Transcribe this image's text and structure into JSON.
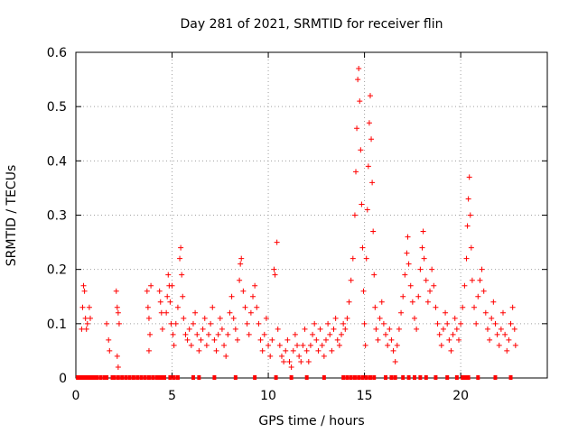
{
  "chart_data": {
    "type": "scatter",
    "title": "Day 281 of 2021, SRMTID for receiver flin",
    "xlabel": "GPS time / hours",
    "ylabel": "SRMTID / TECUs",
    "xlim": [
      0,
      24.5
    ],
    "ylim": [
      0,
      0.6
    ],
    "x_ticks": [
      0,
      5,
      10,
      15,
      20
    ],
    "x_tick_labels": [
      "0",
      "5",
      "10",
      "15",
      "20"
    ],
    "y_ticks": [
      0,
      0.1,
      0.2,
      0.3,
      0.4,
      0.5,
      0.6
    ],
    "y_tick_labels": [
      "0",
      "0.1",
      "0.2",
      "0.3",
      "0.4",
      "0.5",
      "0.6"
    ],
    "grid": true,
    "marker": "+",
    "color": "#ff0000",
    "series": [
      {
        "name": "SRMTID",
        "points": [
          [
            0.3,
            0.09
          ],
          [
            0.35,
            0.13
          ],
          [
            0.4,
            0.17
          ],
          [
            0.45,
            0.16
          ],
          [
            0.5,
            0.11
          ],
          [
            0.55,
            0.09
          ],
          [
            0.6,
            0.1
          ],
          [
            0.7,
            0.13
          ],
          [
            0.75,
            0.11
          ],
          [
            1.6,
            0.1
          ],
          [
            1.7,
            0.07
          ],
          [
            1.75,
            0.05
          ],
          [
            2.1,
            0.16
          ],
          [
            2.15,
            0.13
          ],
          [
            2.2,
            0.12
          ],
          [
            2.25,
            0.1
          ],
          [
            2.15,
            0.04
          ],
          [
            2.2,
            0.02
          ],
          [
            3.7,
            0.16
          ],
          [
            3.75,
            0.13
          ],
          [
            3.8,
            0.11
          ],
          [
            3.85,
            0.08
          ],
          [
            3.8,
            0.05
          ],
          [
            3.9,
            0.17
          ],
          [
            4.35,
            0.16
          ],
          [
            4.4,
            0.14
          ],
          [
            4.45,
            0.12
          ],
          [
            4.5,
            0.09
          ],
          [
            4.7,
            0.12
          ],
          [
            4.75,
            0.15
          ],
          [
            4.8,
            0.19
          ],
          [
            4.85,
            0.17
          ],
          [
            4.9,
            0.14
          ],
          [
            4.95,
            0.1
          ],
          [
            5.0,
            0.17
          ],
          [
            5.05,
            0.08
          ],
          [
            5.1,
            0.06
          ],
          [
            5.2,
            0.1
          ],
          [
            5.3,
            0.13
          ],
          [
            5.4,
            0.22
          ],
          [
            5.45,
            0.24
          ],
          [
            5.5,
            0.19
          ],
          [
            5.55,
            0.15
          ],
          [
            5.6,
            0.11
          ],
          [
            5.7,
            0.08
          ],
          [
            5.8,
            0.07
          ],
          [
            5.9,
            0.09
          ],
          [
            6.0,
            0.06
          ],
          [
            6.1,
            0.1
          ],
          [
            6.2,
            0.12
          ],
          [
            6.3,
            0.08
          ],
          [
            6.4,
            0.05
          ],
          [
            6.5,
            0.07
          ],
          [
            6.6,
            0.09
          ],
          [
            6.7,
            0.11
          ],
          [
            6.8,
            0.06
          ],
          [
            6.9,
            0.08
          ],
          [
            7.0,
            0.1
          ],
          [
            7.1,
            0.13
          ],
          [
            7.2,
            0.07
          ],
          [
            7.3,
            0.05
          ],
          [
            7.4,
            0.08
          ],
          [
            7.5,
            0.11
          ],
          [
            7.6,
            0.09
          ],
          [
            7.7,
            0.06
          ],
          [
            7.8,
            0.04
          ],
          [
            7.9,
            0.08
          ],
          [
            8.0,
            0.12
          ],
          [
            8.1,
            0.15
          ],
          [
            8.2,
            0.11
          ],
          [
            8.3,
            0.09
          ],
          [
            8.4,
            0.07
          ],
          [
            8.5,
            0.18
          ],
          [
            8.55,
            0.21
          ],
          [
            8.6,
            0.22
          ],
          [
            8.7,
            0.16
          ],
          [
            8.8,
            0.13
          ],
          [
            8.9,
            0.1
          ],
          [
            9.0,
            0.08
          ],
          [
            9.1,
            0.12
          ],
          [
            9.2,
            0.15
          ],
          [
            9.3,
            0.17
          ],
          [
            9.4,
            0.13
          ],
          [
            9.5,
            0.1
          ],
          [
            9.6,
            0.07
          ],
          [
            9.7,
            0.05
          ],
          [
            9.8,
            0.08
          ],
          [
            9.9,
            0.11
          ],
          [
            10.0,
            0.06
          ],
          [
            10.1,
            0.04
          ],
          [
            10.2,
            0.07
          ],
          [
            10.3,
            0.2
          ],
          [
            10.35,
            0.19
          ],
          [
            10.45,
            0.25
          ],
          [
            10.5,
            0.09
          ],
          [
            10.6,
            0.06
          ],
          [
            10.7,
            0.04
          ],
          [
            10.8,
            0.03
          ],
          [
            10.9,
            0.05
          ],
          [
            11.0,
            0.07
          ],
          [
            11.1,
            0.03
          ],
          [
            11.2,
            0.02
          ],
          [
            11.3,
            0.05
          ],
          [
            11.4,
            0.08
          ],
          [
            11.5,
            0.06
          ],
          [
            11.6,
            0.04
          ],
          [
            11.7,
            0.03
          ],
          [
            11.8,
            0.06
          ],
          [
            11.9,
            0.09
          ],
          [
            12.0,
            0.05
          ],
          [
            12.1,
            0.03
          ],
          [
            12.2,
            0.06
          ],
          [
            12.3,
            0.08
          ],
          [
            12.4,
            0.1
          ],
          [
            12.5,
            0.07
          ],
          [
            12.6,
            0.05
          ],
          [
            12.7,
            0.09
          ],
          [
            12.8,
            0.06
          ],
          [
            12.9,
            0.04
          ],
          [
            13.0,
            0.07
          ],
          [
            13.1,
            0.1
          ],
          [
            13.2,
            0.08
          ],
          [
            13.3,
            0.05
          ],
          [
            13.4,
            0.09
          ],
          [
            13.5,
            0.11
          ],
          [
            13.6,
            0.07
          ],
          [
            13.7,
            0.06
          ],
          [
            13.8,
            0.08
          ],
          [
            13.9,
            0.1
          ],
          [
            14.0,
            0.09
          ],
          [
            14.1,
            0.11
          ],
          [
            14.2,
            0.14
          ],
          [
            14.3,
            0.18
          ],
          [
            14.4,
            0.22
          ],
          [
            14.5,
            0.3
          ],
          [
            14.55,
            0.38
          ],
          [
            14.6,
            0.46
          ],
          [
            14.65,
            0.55
          ],
          [
            14.7,
            0.57
          ],
          [
            14.75,
            0.51
          ],
          [
            14.8,
            0.42
          ],
          [
            14.85,
            0.32
          ],
          [
            14.9,
            0.24
          ],
          [
            14.95,
            0.16
          ],
          [
            15.0,
            0.1
          ],
          [
            15.05,
            0.06
          ],
          [
            15.1,
            0.22
          ],
          [
            15.15,
            0.31
          ],
          [
            15.2,
            0.39
          ],
          [
            15.25,
            0.47
          ],
          [
            15.3,
            0.52
          ],
          [
            15.35,
            0.44
          ],
          [
            15.4,
            0.36
          ],
          [
            15.45,
            0.27
          ],
          [
            15.5,
            0.19
          ],
          [
            15.55,
            0.13
          ],
          [
            15.6,
            0.09
          ],
          [
            15.7,
            0.07
          ],
          [
            15.8,
            0.11
          ],
          [
            15.9,
            0.14
          ],
          [
            16.0,
            0.1
          ],
          [
            16.1,
            0.08
          ],
          [
            16.2,
            0.06
          ],
          [
            16.3,
            0.09
          ],
          [
            16.4,
            0.07
          ],
          [
            16.5,
            0.05
          ],
          [
            16.6,
            0.03
          ],
          [
            16.7,
            0.06
          ],
          [
            16.8,
            0.09
          ],
          [
            16.9,
            0.12
          ],
          [
            17.0,
            0.15
          ],
          [
            17.1,
            0.19
          ],
          [
            17.2,
            0.23
          ],
          [
            17.25,
            0.26
          ],
          [
            17.3,
            0.21
          ],
          [
            17.4,
            0.17
          ],
          [
            17.5,
            0.14
          ],
          [
            17.6,
            0.11
          ],
          [
            17.7,
            0.09
          ],
          [
            17.8,
            0.15
          ],
          [
            17.9,
            0.2
          ],
          [
            18.0,
            0.24
          ],
          [
            18.05,
            0.27
          ],
          [
            18.1,
            0.22
          ],
          [
            18.2,
            0.18
          ],
          [
            18.3,
            0.14
          ],
          [
            18.4,
            0.16
          ],
          [
            18.5,
            0.2
          ],
          [
            18.6,
            0.17
          ],
          [
            18.7,
            0.13
          ],
          [
            18.8,
            0.1
          ],
          [
            18.9,
            0.08
          ],
          [
            19.0,
            0.06
          ],
          [
            19.1,
            0.09
          ],
          [
            19.2,
            0.12
          ],
          [
            19.3,
            0.1
          ],
          [
            19.4,
            0.07
          ],
          [
            19.5,
            0.05
          ],
          [
            19.6,
            0.08
          ],
          [
            19.7,
            0.11
          ],
          [
            19.8,
            0.09
          ],
          [
            19.9,
            0.07
          ],
          [
            20.0,
            0.1
          ],
          [
            20.1,
            0.13
          ],
          [
            20.2,
            0.17
          ],
          [
            20.3,
            0.22
          ],
          [
            20.35,
            0.28
          ],
          [
            20.4,
            0.33
          ],
          [
            20.45,
            0.37
          ],
          [
            20.5,
            0.3
          ],
          [
            20.55,
            0.24
          ],
          [
            20.6,
            0.18
          ],
          [
            20.7,
            0.13
          ],
          [
            20.8,
            0.1
          ],
          [
            20.9,
            0.15
          ],
          [
            21.0,
            0.18
          ],
          [
            21.1,
            0.2
          ],
          [
            21.2,
            0.16
          ],
          [
            21.3,
            0.12
          ],
          [
            21.4,
            0.09
          ],
          [
            21.5,
            0.07
          ],
          [
            21.6,
            0.11
          ],
          [
            21.7,
            0.14
          ],
          [
            21.8,
            0.1
          ],
          [
            21.9,
            0.08
          ],
          [
            22.0,
            0.06
          ],
          [
            22.1,
            0.09
          ],
          [
            22.2,
            0.12
          ],
          [
            22.3,
            0.08
          ],
          [
            22.4,
            0.05
          ],
          [
            22.5,
            0.07
          ],
          [
            22.6,
            0.1
          ],
          [
            22.7,
            0.13
          ],
          [
            22.8,
            0.09
          ],
          [
            22.85,
            0.06
          ]
        ],
        "zero_values_x": [
          0.1,
          0.2,
          0.3,
          0.4,
          0.5,
          0.6,
          0.7,
          0.8,
          0.9,
          1.0,
          1.1,
          1.3,
          1.5,
          1.6,
          1.9,
          2.0,
          2.2,
          2.4,
          2.6,
          2.8,
          3.0,
          3.2,
          3.4,
          3.6,
          3.8,
          4.0,
          4.2,
          4.3,
          4.4,
          4.5,
          4.6,
          4.9,
          5.1,
          5.3,
          6.1,
          6.4,
          7.2,
          8.3,
          9.3,
          10.4,
          11.2,
          12.0,
          12.9,
          13.9,
          14.1,
          14.3,
          14.5,
          14.7,
          14.9,
          15.1,
          15.3,
          15.5,
          16.1,
          16.4,
          16.6,
          17.0,
          17.3,
          17.6,
          17.9,
          18.2,
          18.7,
          19.3,
          19.8,
          20.1,
          20.2,
          20.3,
          20.4,
          20.9,
          21.8,
          22.6
        ]
      }
    ]
  }
}
